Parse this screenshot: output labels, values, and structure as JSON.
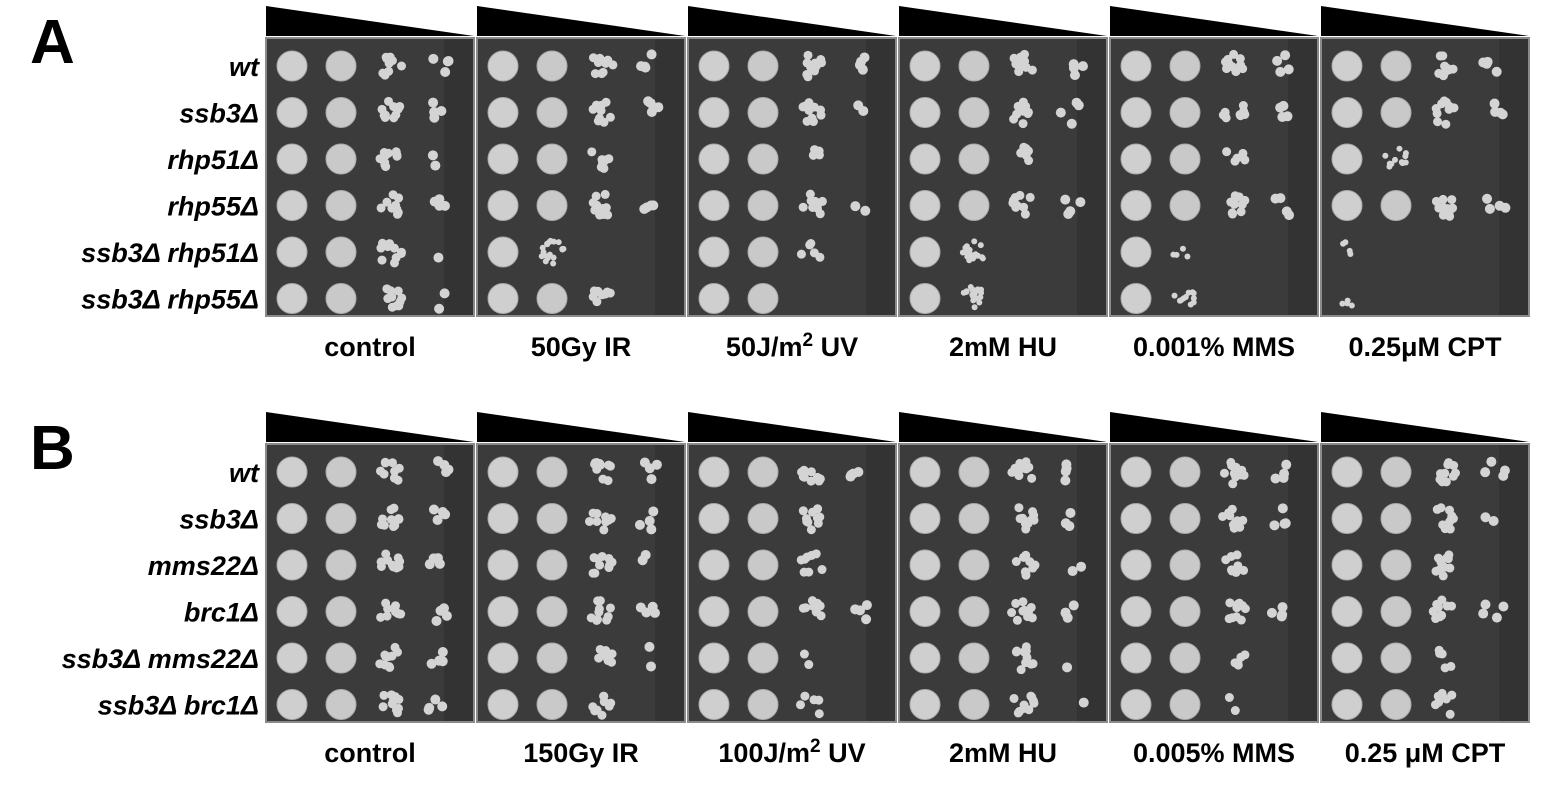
{
  "panels": [
    {
      "label": "A",
      "strains": [
        "wt",
        "ssb3Δ",
        "rhp51Δ",
        "rhp55Δ",
        "ssb3Δ rhp51Δ",
        "ssb3Δ rhp55Δ"
      ],
      "conditions": [
        {
          "text": "control"
        },
        {
          "text": "50Gy IR"
        },
        {
          "text": "50J/m",
          "sup": "2",
          "suffix": " UV"
        },
        {
          "text": "2mM HU"
        },
        {
          "text": "0.001% MMS"
        },
        {
          "text": "0.25μM CPT"
        }
      ]
    },
    {
      "label": "B",
      "strains": [
        "wt",
        "ssb3Δ",
        "mms22Δ",
        "brc1Δ",
        "ssb3Δ mms22Δ",
        "ssb3Δ brc1Δ"
      ],
      "conditions": [
        {
          "text": "control"
        },
        {
          "text": "150Gy IR"
        },
        {
          "text": "100J/m",
          "sup": "2",
          "suffix": " UV"
        },
        {
          "text": "2mM HU"
        },
        {
          "text": "0.005% MMS"
        },
        {
          "text": "0.25 μM CPT"
        }
      ]
    }
  ]
}
